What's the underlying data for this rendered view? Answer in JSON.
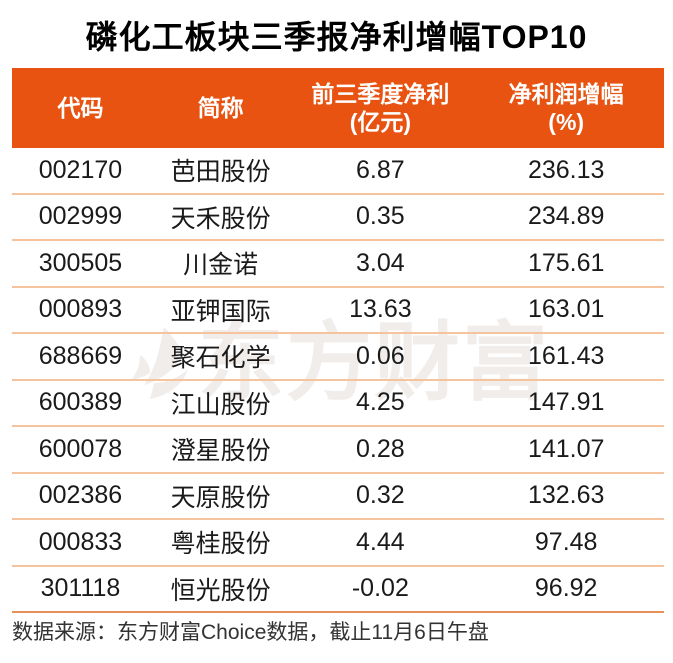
{
  "chart_data": {
    "type": "table",
    "title": "磷化工板块三季报净利增幅TOP10",
    "columns": [
      "代码",
      "简称",
      "前三季度净利(亿元)",
      "净利润增幅(%)"
    ],
    "rows": [
      [
        "002170",
        "芭田股份",
        "6.87",
        "236.13"
      ],
      [
        "002999",
        "天禾股份",
        "0.35",
        "234.89"
      ],
      [
        "300505",
        "川金诺",
        "3.04",
        "175.61"
      ],
      [
        "000893",
        "亚钾国际",
        "13.63",
        "163.01"
      ],
      [
        "688669",
        "聚石化学",
        "0.06",
        "161.43"
      ],
      [
        "600389",
        "江山股份",
        "4.25",
        "147.91"
      ],
      [
        "600078",
        "澄星股份",
        "0.28",
        "141.07"
      ],
      [
        "002386",
        "天原股份",
        "0.32",
        "132.63"
      ],
      [
        "000833",
        "粤桂股份",
        "4.44",
        "97.48"
      ],
      [
        "301118",
        "恒光股份",
        "-0.02",
        "96.92"
      ]
    ],
    "source": "数据来源：东方财富Choice数据，截止11月6日午盘"
  },
  "header_display": {
    "code": "代码",
    "name": "简称",
    "profit_line1": "前三季度净利",
    "profit_line2": "(亿元)",
    "growth_line1": "净利润增幅",
    "growth_line2": "(%)"
  },
  "watermark": {
    "text": "东方财富",
    "logo": "eastmoney-sail-logo"
  },
  "colors": {
    "header_bg": "#E85312",
    "divider": "#F5C39E",
    "bottom_border": "#E89058",
    "watermark": "#F0EDEB"
  }
}
